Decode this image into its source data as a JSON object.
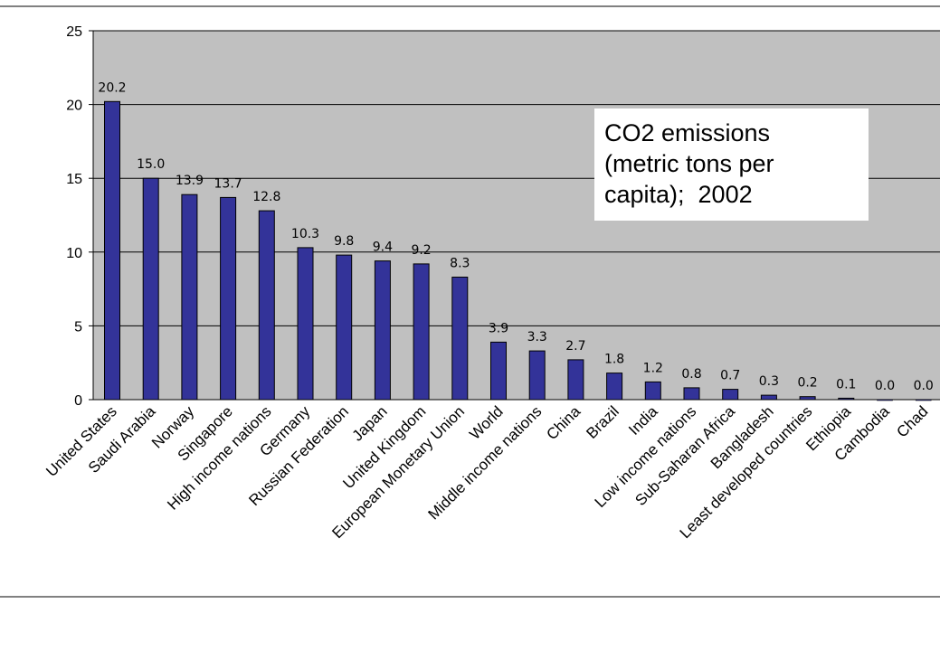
{
  "colors": {
    "plot_background": "#c0c0c0",
    "bar_fill": "#333399",
    "bar_stroke": "#000000",
    "gridline": "#000000",
    "title_box_fill": "#ffffff"
  },
  "chart_data": {
    "type": "bar",
    "title": "CO2 emissions (metric tons per capita); 2002",
    "title_lines": [
      "CO2 emissions",
      "(metric tons per",
      "capita);  2002"
    ],
    "xlabel": "",
    "ylabel": "",
    "ylim": [
      0,
      25
    ],
    "yticks": [
      0,
      5,
      10,
      15,
      20,
      25
    ],
    "grid": true,
    "legend": "none",
    "categories": [
      "United States",
      "Saudi Arabia",
      "Norway",
      "Singapore",
      "High income nations",
      "Germany",
      "Russian Federation",
      "Japan",
      "United Kingdom",
      "European Monetary Union",
      "World",
      "Middle income nations",
      "China",
      "Brazil",
      "India",
      "Low income nations",
      "Sub-Saharan Africa",
      "Bangladesh",
      "Least developed countries",
      "Ethiopia",
      "Cambodia",
      "Chad"
    ],
    "values": [
      20.2,
      15.0,
      13.9,
      13.7,
      12.8,
      10.3,
      9.8,
      9.4,
      9.2,
      8.3,
      3.9,
      3.3,
      2.7,
      1.8,
      1.2,
      0.8,
      0.7,
      0.3,
      0.2,
      0.1,
      0.0,
      0.0
    ],
    "data_labels": [
      "20.2",
      "15.0",
      "13.9",
      "13.7",
      "12.8",
      "10.3",
      "9.8",
      "9.4",
      "9.2",
      "8.3",
      "3.9",
      "3.3",
      "2.7",
      "1.8",
      "1.2",
      "0.8",
      "0.7",
      "0.3",
      "0.2",
      "0.1",
      "0.0",
      "0.0"
    ]
  }
}
